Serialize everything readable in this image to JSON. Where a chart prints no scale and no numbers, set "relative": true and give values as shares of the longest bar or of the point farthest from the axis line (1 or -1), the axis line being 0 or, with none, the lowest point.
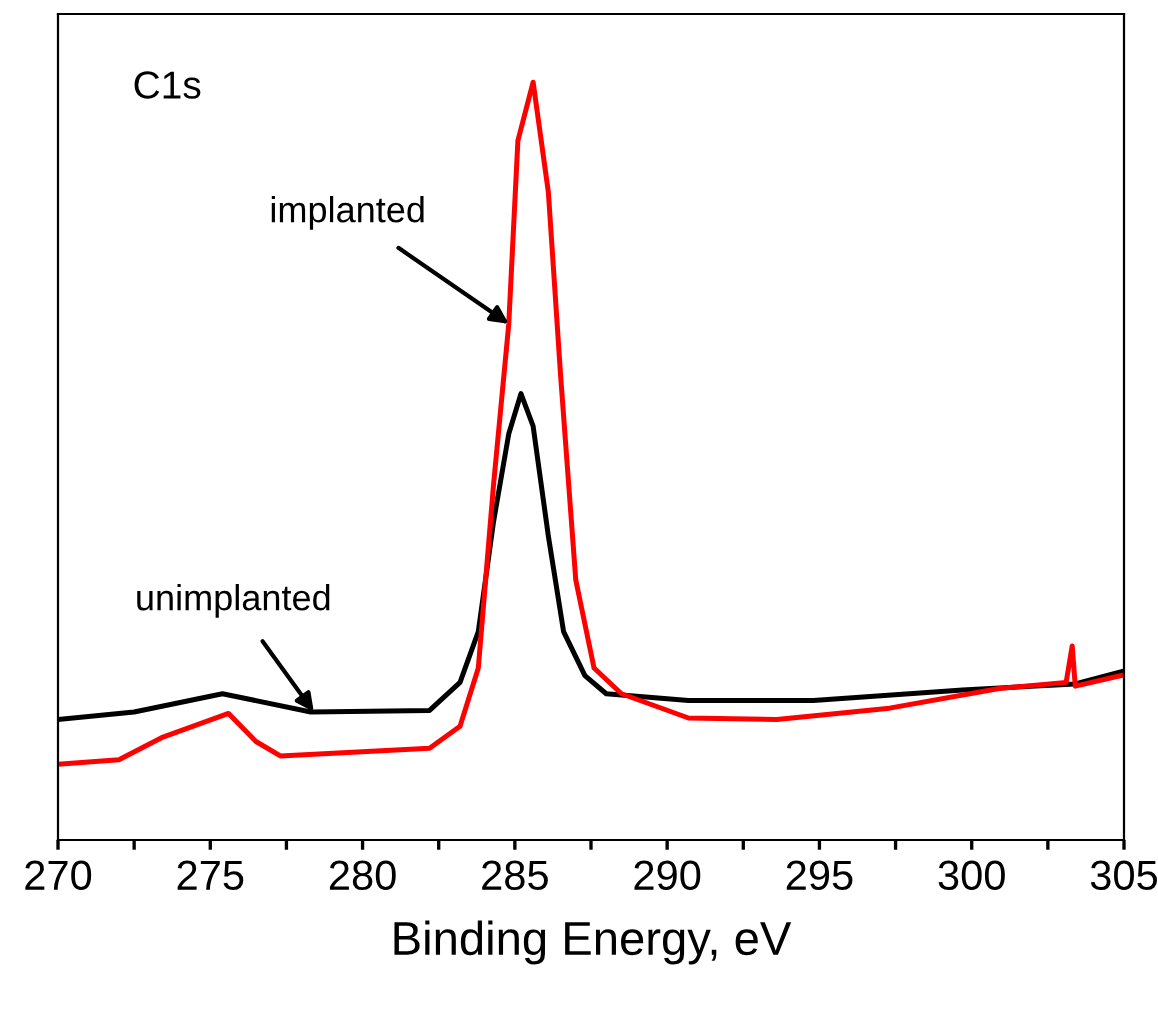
{
  "chart_data": {
    "type": "line",
    "relative": true,
    "xlabel": "Binding Energy, eV",
    "xlim": [
      270,
      305
    ],
    "xticks": [
      270,
      {
        "value": 272.5,
        "label": null
      },
      275,
      {
        "value": 277.5,
        "label": null
      },
      280,
      {
        "value": 282.5,
        "label": null
      },
      285,
      {
        "value": 287.5,
        "label": null
      },
      290,
      {
        "value": 292.5,
        "label": null
      },
      295,
      {
        "value": 297.5,
        "label": null
      },
      300,
      {
        "value": 302.5,
        "label": null
      },
      305
    ],
    "grid": false,
    "legend": false,
    "marker": "none",
    "line_style": "solid",
    "series": [
      {
        "color": "#000000",
        "x": [
          270.0,
          272.5,
          275.4,
          278.3,
          282.2,
          283.2,
          283.8,
          284.3,
          284.8,
          285.2,
          285.6,
          286.1,
          286.6,
          287.3,
          288.0,
          290.7,
          294.8,
          299.7,
          303.4,
          304.9
        ],
        "values": [
          0.159,
          0.169,
          0.193,
          0.169,
          0.171,
          0.208,
          0.275,
          0.42,
          0.536,
          0.589,
          0.546,
          0.401,
          0.275,
          0.217,
          0.193,
          0.184,
          0.184,
          0.198,
          0.206,
          0.222
        ]
      },
      {
        "color": "#ff0000",
        "x": [
          270.0,
          272.0,
          273.4,
          275.6,
          276.5,
          277.3,
          282.2,
          283.2,
          283.8,
          284.3,
          284.8,
          285.1,
          285.6,
          286.1,
          286.5,
          287.0,
          287.6,
          288.5,
          290.7,
          293.6,
          297.3,
          300.9,
          303.1,
          303.3,
          303.4,
          304.9
        ],
        "values": [
          0.1,
          0.106,
          0.135,
          0.167,
          0.13,
          0.111,
          0.121,
          0.15,
          0.227,
          0.469,
          0.681,
          0.923,
          1.0,
          0.855,
          0.614,
          0.343,
          0.227,
          0.193,
          0.161,
          0.159,
          0.174,
          0.2,
          0.208,
          0.256,
          0.203,
          0.217
        ]
      }
    ],
    "annotations": [
      "C1s",
      {
        "text": "implanted",
        "x": 284.8,
        "y": 0.681
      },
      {
        "text": "unimplanted",
        "x": 278.4,
        "y": 0.169
      }
    ]
  }
}
